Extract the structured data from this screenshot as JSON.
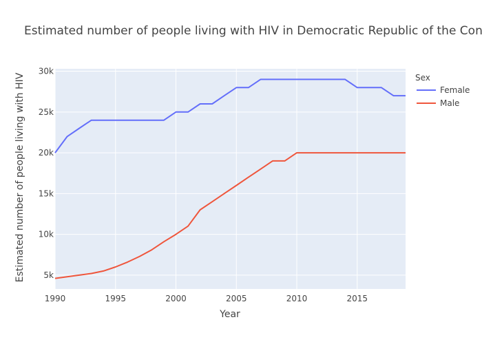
{
  "chart_data": {
    "type": "line",
    "title": "Estimated number of people living with HIV in Democratic Republic of the Congo",
    "xlabel": "Year",
    "ylabel": "Estimated number of people living with HIV",
    "xlim": [
      1990,
      2019
    ],
    "ylim": [
      3300,
      30300
    ],
    "x_ticks": [
      1990,
      1995,
      2000,
      2005,
      2010,
      2015
    ],
    "x_tick_labels": [
      "1990",
      "1995",
      "2000",
      "2005",
      "2010",
      "2015"
    ],
    "y_ticks": [
      5000,
      10000,
      15000,
      20000,
      25000,
      30000
    ],
    "y_tick_labels": [
      "5k",
      "10k",
      "15k",
      "20k",
      "25k",
      "30k"
    ],
    "grid": true,
    "legend": {
      "title": "Sex",
      "placement": "right"
    },
    "x": [
      1990,
      1991,
      1992,
      1993,
      1994,
      1995,
      1996,
      1997,
      1998,
      1999,
      2000,
      2001,
      2002,
      2003,
      2004,
      2005,
      2006,
      2007,
      2008,
      2009,
      2010,
      2011,
      2012,
      2013,
      2014,
      2015,
      2016,
      2017,
      2018,
      2019
    ],
    "series": [
      {
        "name": "Female",
        "color": "#636efa",
        "values": [
          20000,
          22000,
          23000,
          24000,
          24000,
          24000,
          24000,
          24000,
          24000,
          24000,
          25000,
          25000,
          26000,
          26000,
          27000,
          28000,
          28000,
          29000,
          29000,
          29000,
          29000,
          29000,
          29000,
          29000,
          29000,
          28000,
          28000,
          28000,
          27000,
          27000
        ]
      },
      {
        "name": "Male",
        "color": "#EF553B",
        "values": [
          4600,
          4800,
          5000,
          5200,
          5500,
          6000,
          6600,
          7300,
          8100,
          9100,
          10000,
          11000,
          13000,
          14000,
          15000,
          16000,
          17000,
          18000,
          19000,
          19000,
          20000,
          20000,
          20000,
          20000,
          20000,
          20000,
          20000,
          20000,
          20000,
          20000
        ]
      }
    ]
  },
  "colors": {
    "plot_background": "#e5ecf6",
    "grid": "#ffffff",
    "text": "#444444"
  }
}
